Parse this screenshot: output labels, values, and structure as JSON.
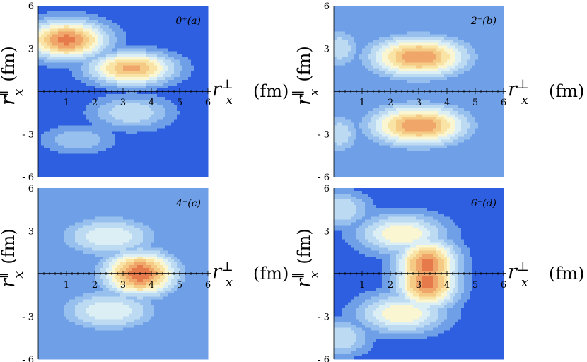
{
  "chart_data": [
    {
      "type": "heatmap",
      "panel_label": "0⁺(a)",
      "xlabel_main": "r",
      "xlabel_sub": "x",
      "xlabel_sup": "⊥",
      "xlabel_unit": "(fm)",
      "ylabel_main": "r",
      "ylabel_sub": "x",
      "ylabel_sup": "∥",
      "ylabel_unit": "(fm)",
      "xlim": [
        0,
        6
      ],
      "ylim": [
        -6,
        6
      ],
      "x_ticks": [
        "1",
        "2",
        "3",
        "4",
        "5",
        "6"
      ],
      "y_ticks": [
        "6",
        "3",
        "- 3",
        "- 6"
      ],
      "background_level": 0,
      "peaks": [
        {
          "x": 1.0,
          "y": 3.6,
          "sx": 1.0,
          "sy": 0.95,
          "level": 9.5
        },
        {
          "x": 3.3,
          "y": 1.6,
          "sx": 1.05,
          "sy": 0.8,
          "level": 8.5
        },
        {
          "x": 3.3,
          "y": -1.5,
          "sx": 1.0,
          "sy": 0.85,
          "level": 4
        },
        {
          "x": 1.4,
          "y": -3.4,
          "sx": 0.9,
          "sy": 0.7,
          "level": 3
        }
      ]
    },
    {
      "type": "heatmap",
      "panel_label": "2⁺(b)",
      "xlabel_main": "r",
      "xlabel_sub": "x",
      "xlabel_sup": "⊥",
      "xlabel_unit": "(fm)",
      "ylabel_main": "r",
      "ylabel_sub": "x",
      "ylabel_sup": "∥",
      "ylabel_unit": "(fm)",
      "xlim": [
        0,
        6
      ],
      "ylim": [
        -6,
        6
      ],
      "x_ticks": [
        "1",
        "2",
        "3",
        "4",
        "5",
        "6"
      ],
      "y_ticks": [
        "6",
        "3",
        "- 3",
        "- 6"
      ],
      "background_level": 1,
      "peaks": [
        {
          "x": 3.0,
          "y": 2.4,
          "sx": 1.2,
          "sy": 1.0,
          "level": 9
        },
        {
          "x": 3.0,
          "y": -2.4,
          "sx": 1.2,
          "sy": 1.0,
          "level": 9
        },
        {
          "x": 0.2,
          "y": 3.0,
          "sx": 0.5,
          "sy": 1.0,
          "level": 4
        },
        {
          "x": 0.2,
          "y": -3.0,
          "sx": 0.5,
          "sy": 1.0,
          "level": 4
        }
      ]
    },
    {
      "type": "heatmap",
      "panel_label": "4⁺(c)",
      "xlabel_main": "r",
      "xlabel_sub": "x",
      "xlabel_sup": "⊥",
      "xlabel_unit": "(fm)",
      "ylabel_main": "r",
      "ylabel_sub": "x",
      "ylabel_sup": "∥",
      "ylabel_unit": "(fm)",
      "xlim": [
        0,
        6
      ],
      "ylim": [
        -6,
        6
      ],
      "x_ticks": [
        "1",
        "2",
        "3",
        "4",
        "5",
        "6"
      ],
      "y_ticks": [
        "6",
        "3",
        "- 3",
        "- 6"
      ],
      "background_level": 1,
      "peaks": [
        {
          "x": 3.6,
          "y": 0.0,
          "sx": 0.9,
          "sy": 1.1,
          "level": 10
        },
        {
          "x": 2.5,
          "y": 2.6,
          "sx": 1.2,
          "sy": 1.0,
          "level": 5
        },
        {
          "x": 2.5,
          "y": -2.6,
          "sx": 1.2,
          "sy": 1.0,
          "level": 5
        }
      ]
    },
    {
      "type": "heatmap",
      "panel_label": "6⁺(d)",
      "xlabel_main": "r",
      "xlabel_sub": "x",
      "xlabel_sup": "⊥",
      "xlabel_unit": "(fm)",
      "ylabel_main": "r",
      "ylabel_sub": "x",
      "ylabel_sup": "∥",
      "ylabel_unit": "(fm)",
      "xlim": [
        0,
        6
      ],
      "ylim": [
        -6,
        6
      ],
      "x_ticks": [
        "1",
        "2",
        "3",
        "4",
        "5",
        "6"
      ],
      "y_ticks": [
        "6",
        "3",
        "- 3",
        "- 6"
      ],
      "background_level": 0,
      "peaks": [
        {
          "x": 3.3,
          "y": 0.6,
          "sx": 0.75,
          "sy": 1.3,
          "level": 9.5
        },
        {
          "x": 3.3,
          "y": -0.6,
          "sx": 0.75,
          "sy": 1.3,
          "level": 9.5
        },
        {
          "x": 2.4,
          "y": 2.8,
          "sx": 1.1,
          "sy": 1.0,
          "level": 6
        },
        {
          "x": 2.4,
          "y": -2.8,
          "sx": 1.1,
          "sy": 1.0,
          "level": 6
        },
        {
          "x": 0.3,
          "y": 4.5,
          "sx": 0.7,
          "sy": 0.9,
          "level": 4
        },
        {
          "x": 0.3,
          "y": -4.5,
          "sx": 0.7,
          "sy": 0.9,
          "level": 4
        }
      ]
    }
  ],
  "colormap": [
    "#2e5fe0",
    "#6f9fe6",
    "#98c0ee",
    "#bcdaf2",
    "#dceff4",
    "#fbf6d2",
    "#f9e4a6",
    "#f5ca85",
    "#f0a569",
    "#e77a4b",
    "#db5a32"
  ]
}
